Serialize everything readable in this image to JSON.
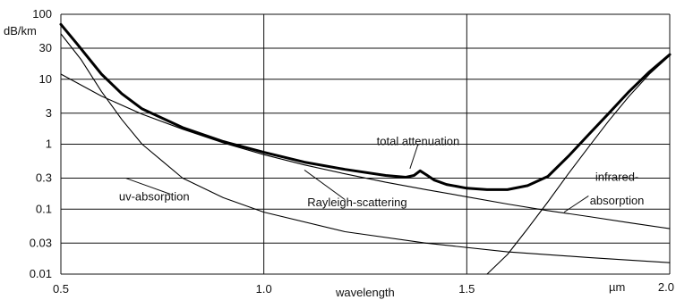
{
  "chart_data": {
    "type": "line",
    "title": "",
    "xlabel": "wavelength",
    "x_unit": "µm",
    "ylabel": "dB/km",
    "yscale": "log",
    "xlim": [
      0.5,
      2.0
    ],
    "ylim": [
      0.01,
      100
    ],
    "grid": true,
    "x_ticks": [
      {
        "value": 0.5,
        "label": "0.5"
      },
      {
        "value": 1.0,
        "label": "1.0"
      },
      {
        "value": 1.5,
        "label": "1.5"
      },
      {
        "value": 2.0,
        "label": "2.0"
      }
    ],
    "y_ticks": [
      {
        "value": 100,
        "label": "100"
      },
      {
        "value": 30,
        "label": "30"
      },
      {
        "value": 10,
        "label": "10"
      },
      {
        "value": 3,
        "label": "3"
      },
      {
        "value": 1,
        "label": "1"
      },
      {
        "value": 0.3,
        "label": "0.3"
      },
      {
        "value": 0.1,
        "label": "0.1"
      },
      {
        "value": 0.03,
        "label": "0.03"
      },
      {
        "value": 0.01,
        "label": "0.01"
      }
    ],
    "series": [
      {
        "name": "total attenuation",
        "color": "#000000",
        "bold": true,
        "x": [
          0.5,
          0.54,
          0.6,
          0.65,
          0.7,
          0.8,
          0.9,
          1.0,
          1.1,
          1.2,
          1.3,
          1.35,
          1.37,
          1.385,
          1.4,
          1.42,
          1.45,
          1.5,
          1.55,
          1.6,
          1.65,
          1.7,
          1.75,
          1.8,
          1.85,
          1.9,
          1.95,
          2.0
        ],
        "y": [
          70,
          35,
          12,
          6,
          3.5,
          1.8,
          1.1,
          0.75,
          0.53,
          0.41,
          0.33,
          0.31,
          0.33,
          0.39,
          0.34,
          0.28,
          0.24,
          0.21,
          0.2,
          0.2,
          0.23,
          0.32,
          0.65,
          1.4,
          3,
          6.5,
          13,
          24
        ]
      },
      {
        "name": "Rayleigh-scattering",
        "color": "#000000",
        "bold": false,
        "x": [
          0.5,
          0.6,
          0.7,
          0.8,
          0.9,
          1.0,
          1.1,
          1.2,
          1.3,
          1.4,
          1.5,
          1.6,
          1.7,
          1.8,
          1.9,
          2.0
        ],
        "y": [
          12,
          5.5,
          2.9,
          1.7,
          1.05,
          0.69,
          0.48,
          0.35,
          0.26,
          0.2,
          0.155,
          0.12,
          0.095,
          0.077,
          0.062,
          0.05
        ]
      },
      {
        "name": "uv-absorption",
        "color": "#000000",
        "bold": false,
        "x": [
          0.5,
          0.55,
          0.6,
          0.65,
          0.7,
          0.75,
          0.8,
          0.9,
          1.0,
          1.2,
          1.4,
          1.6,
          1.8,
          2.0
        ],
        "y": [
          50,
          20,
          6.5,
          2.4,
          1,
          0.55,
          0.3,
          0.15,
          0.09,
          0.045,
          0.03,
          0.022,
          0.018,
          0.015
        ]
      },
      {
        "name": "infrared-absorption",
        "color": "#000000",
        "bold": false,
        "x": [
          1.55,
          1.6,
          1.65,
          1.7,
          1.75,
          1.8,
          1.85,
          1.9,
          1.95,
          2.0
        ],
        "y": [
          0.01,
          0.02,
          0.05,
          0.13,
          0.35,
          0.9,
          2.3,
          5.5,
          12,
          23
        ]
      }
    ],
    "annotations": [
      {
        "text": "total attenuation",
        "x": 1.38,
        "y": 1.1
      },
      {
        "text": "Rayleigh-scattering",
        "x": 1.23,
        "y": 0.125
      },
      {
        "text": "uv-absorption",
        "x": 0.73,
        "y": 0.155
      },
      {
        "text": "infrared-",
        "x": 1.87,
        "y": 0.31
      },
      {
        "text": "absorption",
        "x": 1.87,
        "y": 0.135
      }
    ]
  }
}
